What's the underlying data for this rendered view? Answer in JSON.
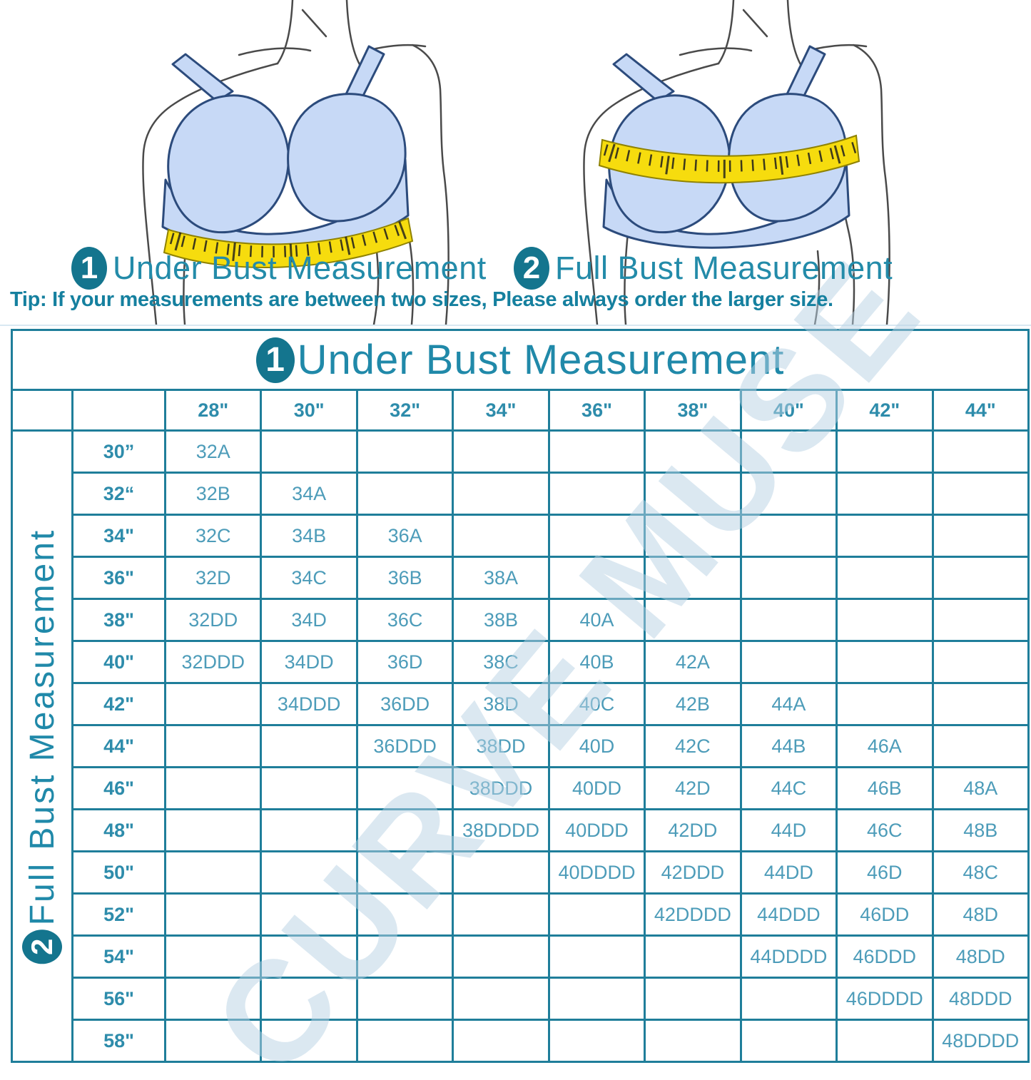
{
  "figures": {
    "figure1": {
      "badge": "1",
      "label": "Under Bust Measurement"
    },
    "figure2": {
      "badge": "2",
      "label": "Full Bust Measurement"
    }
  },
  "tip": "Tip: If your measurements are between two sizes, Please always order the larger size.",
  "watermark": "CURVE MUSE",
  "table": {
    "badge": "1",
    "title": "Under Bust Measurement",
    "side_badge": "2",
    "side_title": "Full Bust Measurement"
  },
  "chart_data": {
    "type": "table",
    "title": "Under Bust Measurement",
    "col_axis": "Under Bust Measurement",
    "row_axis": "Full Bust Measurement",
    "col_headers": [
      "28\"",
      "30\"",
      "32\"",
      "34\"",
      "36\"",
      "38\"",
      "40\"",
      "42\"",
      "44\""
    ],
    "row_headers": [
      "30”",
      "32“",
      "34\"",
      "36\"",
      "38\"",
      "40\"",
      "42\"",
      "44\"",
      "46\"",
      "48\"",
      "50\"",
      "52\"",
      "54\"",
      "56\"",
      "58\""
    ],
    "cells": [
      [
        "32A",
        "",
        "",
        "",
        "",
        "",
        "",
        "",
        ""
      ],
      [
        "32B",
        "34A",
        "",
        "",
        "",
        "",
        "",
        "",
        ""
      ],
      [
        "32C",
        "34B",
        "36A",
        "",
        "",
        "",
        "",
        "",
        ""
      ],
      [
        "32D",
        "34C",
        "36B",
        "38A",
        "",
        "",
        "",
        "",
        ""
      ],
      [
        "32DD",
        "34D",
        "36C",
        "38B",
        "40A",
        "",
        "",
        "",
        ""
      ],
      [
        "32DDD",
        "34DD",
        "36D",
        "38C",
        "40B",
        "42A",
        "",
        "",
        ""
      ],
      [
        "",
        "34DDD",
        "36DD",
        "38D",
        "40C",
        "42B",
        "44A",
        "",
        ""
      ],
      [
        "",
        "",
        "36DDD",
        "38DD",
        "40D",
        "42C",
        "44B",
        "46A",
        ""
      ],
      [
        "",
        "",
        "",
        "38DDD",
        "40DD",
        "42D",
        "44C",
        "46B",
        "48A"
      ],
      [
        "",
        "",
        "",
        "38DDDD",
        "40DDD",
        "42DD",
        "44D",
        "46C",
        "48B"
      ],
      [
        "",
        "",
        "",
        "",
        "40DDDD",
        "42DDD",
        "44DD",
        "46D",
        "48C"
      ],
      [
        "",
        "",
        "",
        "",
        "",
        "42DDDD",
        "44DDD",
        "46DD",
        "48D"
      ],
      [
        "",
        "",
        "",
        "",
        "",
        "",
        "44DDDD",
        "46DDD",
        "48DD"
      ],
      [
        "",
        "",
        "",
        "",
        "",
        "",
        "",
        "46DDDD",
        "48DDD"
      ],
      [
        "",
        "",
        "",
        "",
        "",
        "",
        "",
        "",
        "48DDDD"
      ]
    ]
  },
  "colors": {
    "teal_border": "#1f7e9a",
    "teal_text": "#2089a9",
    "cell_text": "#4d9cb9",
    "badge_fill": "#14758e",
    "pink_cell": "#fdeef4",
    "tape_yellow": "#f6dc0e",
    "bra_blue": "#c7d9f6",
    "bra_outline": "#2c4b7c",
    "watermark_blue": "#b7d1e3"
  }
}
